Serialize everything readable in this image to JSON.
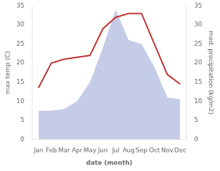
{
  "chart_data": {
    "type": "line",
    "xlabel": "date (month)",
    "ylabel": "max temp (C)",
    "y2label": "med. precipitation (kg/m2)",
    "categories": [
      "Jan",
      "Feb",
      "Mar",
      "Apr",
      "May",
      "Jun",
      "Jul",
      "Aug",
      "Sep",
      "Oct",
      "Nov",
      "Dec"
    ],
    "series": [
      {
        "type": "area",
        "axis": "y2",
        "color": "#c5cce8",
        "values": [
          7.5,
          7.5,
          8.0,
          10.0,
          15.0,
          24.0,
          34.0,
          26.0,
          25.0,
          19.0,
          11.0,
          10.5
        ]
      },
      {
        "type": "line",
        "color": "#c03030",
        "values": [
          13.5,
          20.0,
          21.0,
          21.5,
          22.0,
          29.0,
          32.0,
          33.0,
          33.0,
          25.0,
          17.0,
          14.5
        ]
      }
    ],
    "ylim": [
      0,
      35
    ],
    "yticks": [
      0,
      5,
      10,
      15,
      20,
      25,
      30,
      35
    ],
    "y2lim": [
      0,
      35
    ],
    "y2ticks": [
      0,
      5,
      10,
      15,
      20,
      25,
      30,
      35
    ],
    "grid": false
  }
}
